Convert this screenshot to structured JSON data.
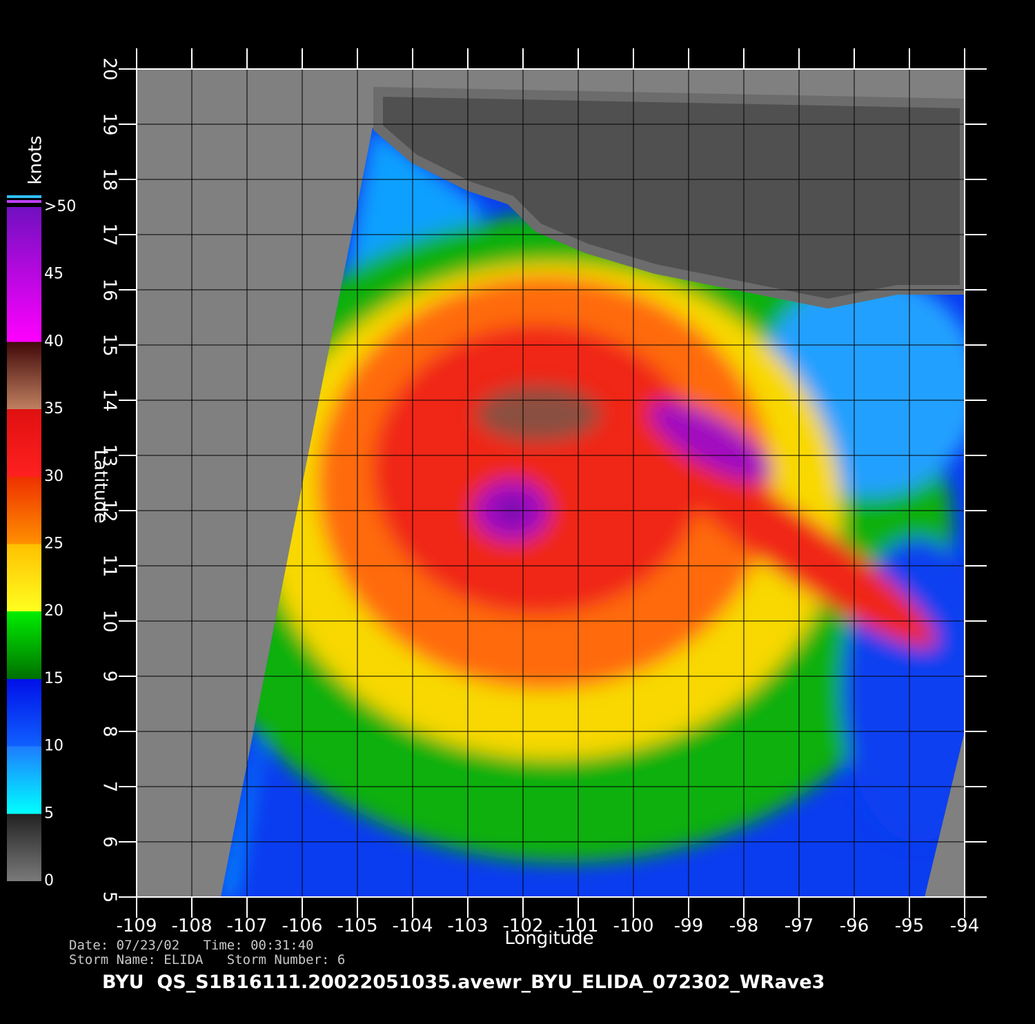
{
  "chart_data": {
    "type": "map",
    "x_label": "Longitude",
    "y_label": "Latitude",
    "xlim": [
      -109,
      -94
    ],
    "xticks": [
      -109,
      -108,
      -107,
      -106,
      -105,
      -104,
      -103,
      -102,
      -101,
      -100,
      -99,
      -98,
      -97,
      -96,
      -95,
      -94
    ],
    "ylim": [
      5,
      20
    ],
    "yticks": [
      5,
      6,
      7,
      8,
      9,
      10,
      11,
      12,
      13,
      14,
      15,
      16,
      17,
      18,
      19,
      20
    ],
    "grid": true,
    "colorbar": {
      "label": "knots",
      "lim": [
        0,
        50
      ],
      "ticks": [
        0,
        5,
        10,
        15,
        20,
        25,
        30,
        35,
        40,
        45,
        {
          "value": 50,
          "label": ">50"
        }
      ]
    },
    "info_lines": [
      "Date: 07/23/02   Time: 00:31:40",
      "Storm Name: ELIDA   Storm Number: 6"
    ],
    "title": "BYU  QS_S1B16111.20022051035.avewr_BYU_ELIDA_072302_WRave3"
  }
}
